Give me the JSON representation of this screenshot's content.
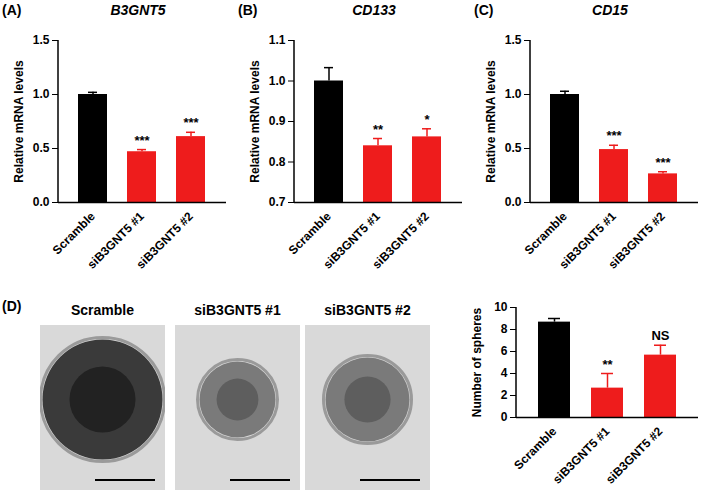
{
  "chart_data": [
    {
      "type": "bar",
      "panel": "(A)",
      "title": "B3GNT5",
      "y_label": "Relative mRNA levels",
      "categories": [
        "Scramble",
        "siB3GNT5 #1",
        "siB3GNT5 #2"
      ],
      "values": [
        1.0,
        0.47,
        0.61
      ],
      "errors": [
        0.02,
        0.02,
        0.04
      ],
      "significance": [
        null,
        "***",
        "***"
      ],
      "colors": [
        "#000000",
        "#ee1c1c",
        "#ee1c1c"
      ],
      "ylim": [
        0,
        1.5
      ],
      "yticks": [
        {
          "value": 0,
          "label": "0.0"
        },
        {
          "value": 0.5,
          "label": "0.5"
        },
        {
          "value": 1,
          "label": "1.0"
        },
        {
          "value": 1.5,
          "label": "1.5"
        }
      ]
    },
    {
      "type": "bar",
      "panel": "(B)",
      "title": "CD133",
      "y_label": "Relative mRNA levels",
      "categories": [
        "Scramble",
        "siB3GNT5 #1",
        "siB3GNT5 #2"
      ],
      "values": [
        1.0,
        0.84,
        0.862
      ],
      "errors": [
        0.033,
        0.018,
        0.02
      ],
      "significance": [
        null,
        "**",
        "*"
      ],
      "colors": [
        "#000000",
        "#ee1c1c",
        "#ee1c1c"
      ],
      "ylim": [
        0.7,
        1.1
      ],
      "yticks": [
        0.7,
        0.8,
        0.9,
        {
          "value": 1,
          "label": "1.0"
        },
        1.1
      ]
    },
    {
      "type": "bar",
      "panel": "(C)",
      "title": "CD15",
      "y_label": "Relative mRNA levels",
      "categories": [
        "Scramble",
        "siB3GNT5 #1",
        "siB3GNT5 #2"
      ],
      "values": [
        1.0,
        0.49,
        0.265
      ],
      "errors": [
        0.03,
        0.04,
        0.02
      ],
      "significance": [
        null,
        "***",
        "***"
      ],
      "colors": [
        "#000000",
        "#ee1c1c",
        "#ee1c1c"
      ],
      "ylim": [
        0,
        1.5
      ],
      "yticks": [
        {
          "value": 0,
          "label": "0.0"
        },
        {
          "value": 0.5,
          "label": "0.5"
        },
        {
          "value": 1,
          "label": "1.0"
        },
        {
          "value": 1.5,
          "label": "1.5"
        }
      ]
    },
    {
      "type": "bar",
      "y_label": "Number of spheres",
      "categories": [
        "Scramble",
        "siB3GNT5 #1",
        "siB3GNT5 #2"
      ],
      "values": [
        8.67,
        2.67,
        5.67
      ],
      "errors": [
        0.33,
        1.33,
        0.9
      ],
      "significance": [
        null,
        "**",
        "NS"
      ],
      "colors": [
        "#000000",
        "#ee1c1c",
        "#ee1c1c"
      ],
      "ylim": [
        0,
        10
      ],
      "yticks": [
        0,
        2,
        4,
        6,
        8,
        10
      ]
    }
  ],
  "image_panel": {
    "panel": "(D)",
    "captions": [
      "Scramble",
      "siB3GNT5 #1",
      "siB3GNT5 #2"
    ]
  }
}
